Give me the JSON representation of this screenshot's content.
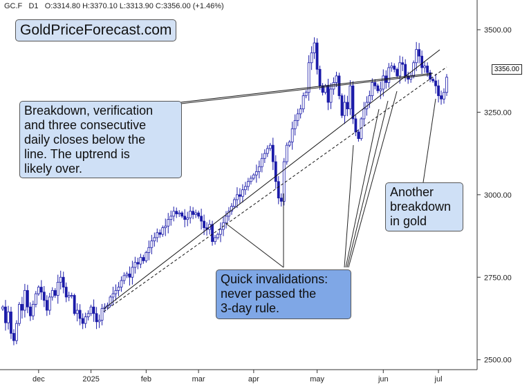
{
  "header": {
    "symbol": "GC.F",
    "timeframe": "D1",
    "ohlc": "O:3314.80  H:3370.10  L:3313.90  C:3356.00  (+1.46%)"
  },
  "brand": "GoldPriceForecast.com",
  "annotations": {
    "breakdown": [
      "Breakdown, verification",
      "and three consecutive",
      "daily closes below the",
      "line. The uptrend is",
      "likely over."
    ],
    "quick": [
      "Quick invalidations:",
      "never passed the",
      "3-day rule."
    ],
    "another": [
      "Another",
      "breakdown",
      "in gold"
    ]
  },
  "colors": {
    "candle": "#1a1aa8",
    "line": "#111111",
    "note_light": "#cfe0f6",
    "note_dark": "#7fa7e6"
  },
  "chart_data": {
    "type": "candlestick",
    "title": "",
    "xlabel": "",
    "ylabel": "",
    "ylim": [
      2470,
      3590
    ],
    "y_ticks": [
      2500,
      2750,
      3000,
      3250,
      3500
    ],
    "y_tick_labels": [
      "2500.00",
      "2750.00",
      "3000.00",
      "3250.00",
      "3500.00"
    ],
    "x_tick_labels": [
      "dec",
      "2025",
      "feb",
      "mar",
      "apr",
      "may",
      "jun",
      "jul"
    ],
    "last_price_label": "3356.00",
    "closes": [
      2660,
      2612,
      2645,
      2580,
      2558,
      2610,
      2668,
      2650,
      2710,
      2660,
      2633,
      2668,
      2700,
      2720,
      2705,
      2680,
      2650,
      2690,
      2710,
      2695,
      2735,
      2750,
      2720,
      2690,
      2695,
      2695,
      2640,
      2650,
      2625,
      2610,
      2630,
      2640,
      2660,
      2640,
      2615,
      2620,
      2655,
      2660,
      2665,
      2690,
      2700,
      2710,
      2720,
      2740,
      2755,
      2760,
      2750,
      2780,
      2795,
      2790,
      2810,
      2800,
      2825,
      2840,
      2860,
      2870,
      2885,
      2880,
      2900,
      2905,
      2925,
      2935,
      2950,
      2942,
      2945,
      2935,
      2925,
      2930,
      2950,
      2940,
      2945,
      2935,
      2920,
      2900,
      2895,
      2910,
      2858,
      2870,
      2880,
      2895,
      2915,
      2935,
      2950,
      2965,
      2985,
      3000,
      2995,
      3015,
      3025,
      3040,
      3050,
      3060,
      3070,
      3085,
      3110,
      3125,
      3140,
      3150,
      3100,
      3040,
      2990,
      2980,
      3100,
      3150,
      3160,
      3200,
      3225,
      3245,
      3260,
      3300,
      3310,
      3400,
      3430,
      3460,
      3380,
      3330,
      3310,
      3330,
      3280,
      3320,
      3340,
      3360,
      3300,
      3240,
      3280,
      3260,
      3330,
      3230,
      3190,
      3170,
      3230,
      3260,
      3280,
      3300,
      3340,
      3330,
      3315,
      3320,
      3360,
      3340,
      3385,
      3390,
      3380,
      3360,
      3400,
      3395,
      3360,
      3350,
      3360,
      3400,
      3440,
      3420,
      3385,
      3390,
      3370,
      3350,
      3345,
      3330,
      3300,
      3290,
      3310,
      3356
    ]
  }
}
